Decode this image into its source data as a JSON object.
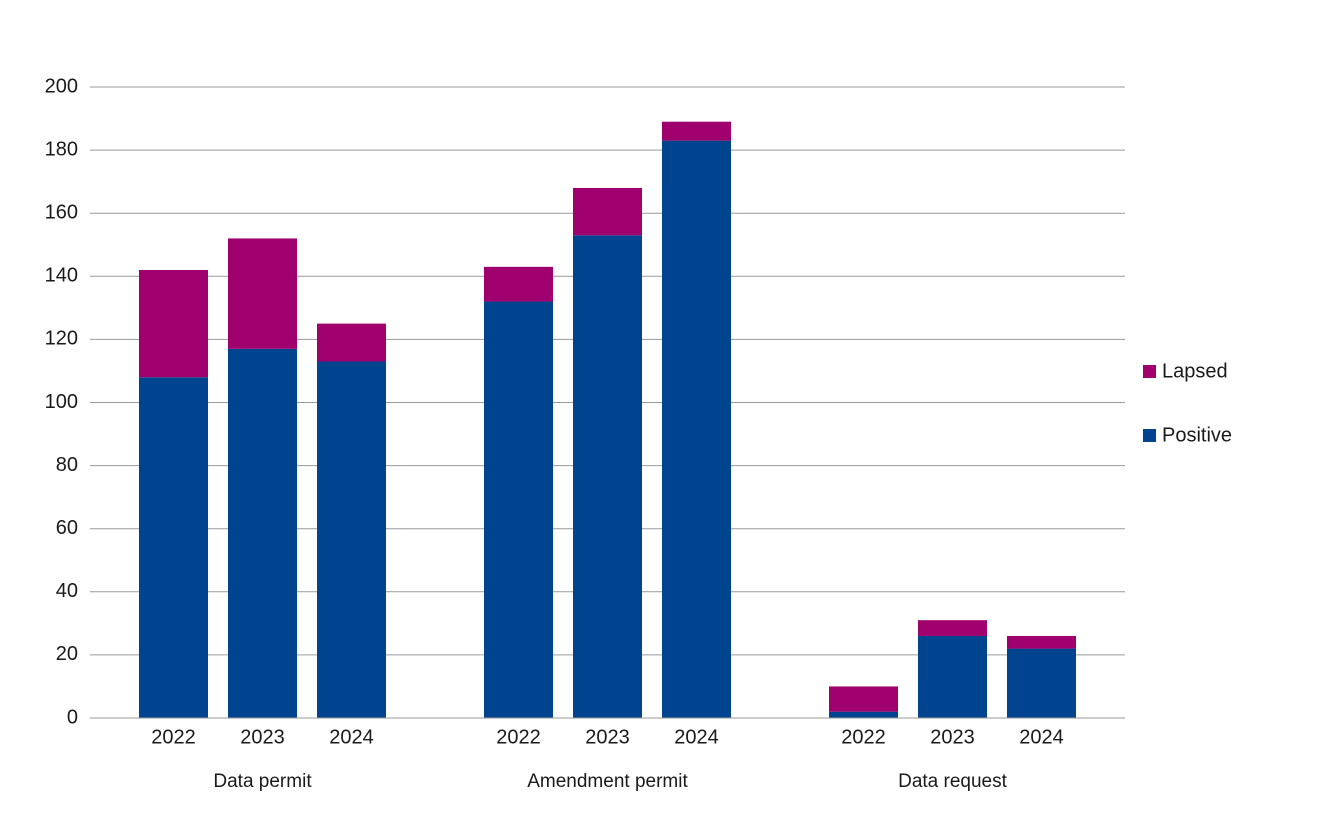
{
  "chart_data": {
    "type": "stacked_bar",
    "groups": [
      {
        "name": "Data permit",
        "categories": [
          "2022",
          "2023",
          "2024"
        ]
      },
      {
        "name": "Amendment permit",
        "categories": [
          "2022",
          "2023",
          "2024"
        ]
      },
      {
        "name": "Data request",
        "categories": [
          "2022",
          "2023",
          "2024"
        ]
      }
    ],
    "series": [
      {
        "name": "Positive",
        "color": "#00448f",
        "values": [
          108,
          117,
          113,
          132,
          153,
          183,
          2,
          26,
          22
        ]
      },
      {
        "name": "Lapsed",
        "color": "#a0006e",
        "values": [
          34,
          35,
          12,
          11,
          15,
          6,
          8,
          5,
          4
        ]
      }
    ],
    "ylim": [
      0,
      200
    ],
    "yticks": [
      0,
      20,
      40,
      60,
      80,
      100,
      120,
      140,
      160,
      180,
      200
    ],
    "grid": true,
    "legend": "right"
  }
}
